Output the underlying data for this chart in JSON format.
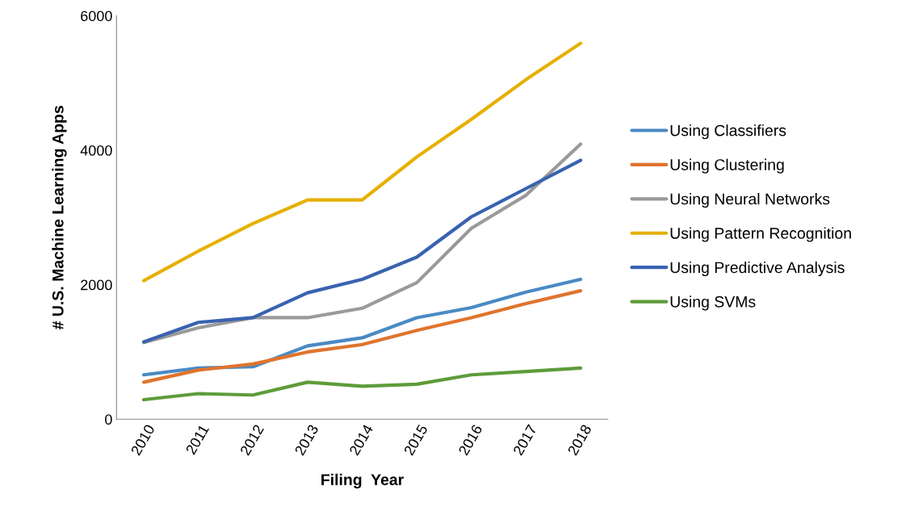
{
  "chart_data": {
    "type": "line",
    "xlabel": "Filing  Year",
    "ylabel": "# U.S. Machine Learning Apps",
    "categories": [
      "2010",
      "2011",
      "2012",
      "2013",
      "2014",
      "2015",
      "2016",
      "2017",
      "2018"
    ],
    "series": [
      {
        "name": "Using Classifiers",
        "color": "#4a8ac4",
        "values": [
          660,
          760,
          780,
          1090,
          1210,
          1510,
          1660,
          1890,
          2080
        ]
      },
      {
        "name": "Using Clustering",
        "color": "#e0742e",
        "values": [
          550,
          730,
          820,
          1000,
          1110,
          1320,
          1510,
          1720,
          1910
        ]
      },
      {
        "name": "Using Neural Networks",
        "color": "#9a9a9a",
        "values": [
          1140,
          1360,
          1510,
          1510,
          1650,
          2030,
          2840,
          3330,
          4090
        ]
      },
      {
        "name": "Using Pattern Recognition",
        "color": "#e6b000",
        "values": [
          2060,
          2500,
          2910,
          3260,
          3260,
          3900,
          4460,
          5050,
          5590
        ]
      },
      {
        "name": "Using Predictive Analysis",
        "color": "#3a62b0",
        "values": [
          1150,
          1440,
          1510,
          1880,
          2080,
          2410,
          3010,
          3430,
          3850
        ]
      },
      {
        "name": "Using SVMs",
        "color": "#5e9c3a",
        "values": [
          290,
          380,
          360,
          550,
          490,
          520,
          660,
          710,
          760
        ]
      }
    ],
    "ylim": [
      0,
      6000
    ],
    "yticks": [
      0,
      2000,
      4000,
      6000
    ],
    "grid": false,
    "legend": "right",
    "marker": "none",
    "line_style": "solid"
  }
}
